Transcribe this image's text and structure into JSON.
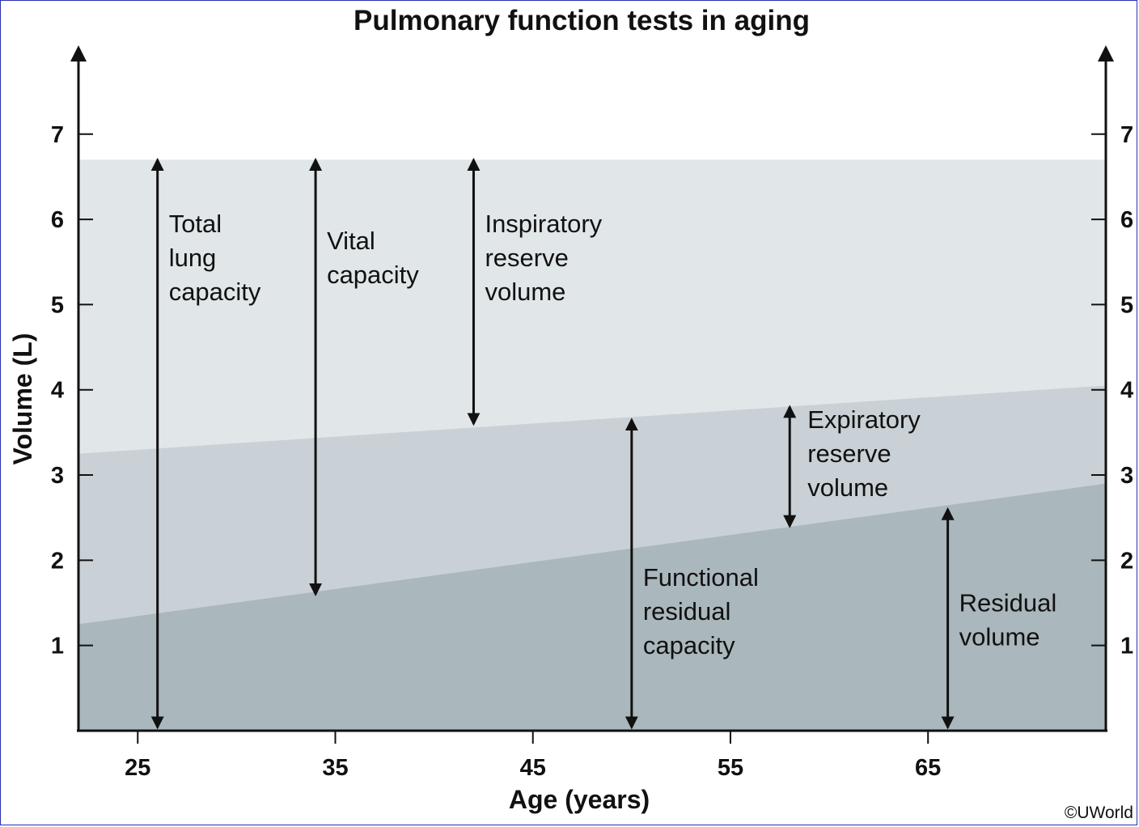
{
  "chart_data": {
    "type": "area",
    "title": "Pulmonary function tests in aging",
    "xlabel": "Age (years)",
    "ylabel": "Volume (L)",
    "xlim": [
      22,
      74
    ],
    "ylim": [
      0,
      7.9
    ],
    "x_ticks": [
      25,
      35,
      45,
      55,
      65
    ],
    "y_ticks": [
      1,
      2,
      3,
      4,
      5,
      6,
      7
    ],
    "grid": false,
    "secondary_y_axis": true,
    "x": [
      22,
      74
    ],
    "series": [
      {
        "name": "Total lung capacity",
        "values": [
          6.7,
          6.7
        ]
      },
      {
        "name": "Functional residual capacity",
        "values": [
          3.25,
          4.05
        ]
      },
      {
        "name": "Residual volume",
        "values": [
          1.25,
          2.9
        ]
      }
    ],
    "annotations": [
      {
        "id": "tlc",
        "lines": [
          "Total",
          "lung",
          "capacity"
        ],
        "x": 26,
        "y_range": [
          0,
          6.7
        ]
      },
      {
        "id": "vc",
        "lines": [
          "Vital",
          "capacity"
        ],
        "x": 34,
        "y_range": [
          1.6,
          6.7
        ]
      },
      {
        "id": "irv",
        "lines": [
          "Inspiratory",
          "reserve",
          "volume"
        ],
        "x": 42,
        "y_range": [
          3.6,
          6.7
        ]
      },
      {
        "id": "frc",
        "lines": [
          "Functional",
          "residual",
          "capacity"
        ],
        "x": 50,
        "y_range": [
          0,
          3.65
        ]
      },
      {
        "id": "erv",
        "lines": [
          "Expiratory",
          "reserve",
          "volume"
        ],
        "x": 58,
        "y_range": [
          2.4,
          3.8
        ]
      },
      {
        "id": "rv",
        "lines": [
          "Residual",
          "volume"
        ],
        "x": 66,
        "y_range": [
          0,
          2.6
        ]
      }
    ],
    "colors": {
      "tlc_band": "#e1e6e9",
      "frc_band": "#c9d1d6",
      "rv_band": "#aab7bd",
      "axis": "#111111"
    }
  },
  "copyright": "©UWorld"
}
